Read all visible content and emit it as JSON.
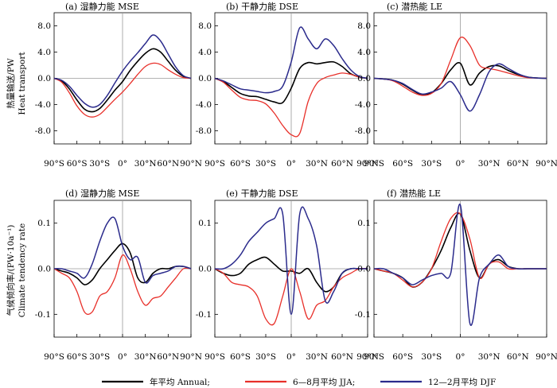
{
  "colors": {
    "annual": "#000000",
    "jja": "#e8302a",
    "djf": "#2b2b8c"
  },
  "legend": [
    {
      "key": "annual",
      "label": "年平均 Annual;"
    },
    {
      "key": "jja",
      "label": "6—8月平均 JJA;"
    },
    {
      "key": "djf",
      "label": "12—2月平均 DJF"
    }
  ],
  "y_labels": {
    "top_cn": "热量输送/PW",
    "top_en": "Heat transport",
    "bottom_cn": "气候倾向率/(PW·10a⁻¹)",
    "bottom_en": "Climate tendency rate"
  },
  "chart_data": [
    {
      "type": "line",
      "title": "(a) 湿静力能 MSE",
      "x": [
        -90,
        -80,
        -70,
        -60,
        -50,
        -40,
        -30,
        -20,
        -10,
        0,
        10,
        20,
        30,
        40,
        50,
        60,
        70,
        80,
        90
      ],
      "xlim": [
        -90,
        90
      ],
      "ylim": [
        -10,
        10
      ],
      "xticks": [
        -90,
        -60,
        -30,
        0,
        30,
        60,
        90
      ],
      "xticklabels": [
        "90°S",
        "60°S",
        "30°S",
        "0°",
        "30°N",
        "60°N",
        "90°N"
      ],
      "yticks": [
        -8,
        -4,
        0,
        4,
        8
      ],
      "yticklabels": [
        "-8.0",
        "-4.0",
        "0.0",
        "4.0",
        "8.0"
      ],
      "series": [
        {
          "name": "Annual",
          "values": [
            0,
            -0.4,
            -1.6,
            -3.3,
            -4.7,
            -5.1,
            -4.6,
            -3.3,
            -1.8,
            -0.5,
            1.2,
            2.6,
            3.8,
            4.5,
            4.0,
            2.6,
            1.2,
            0.3,
            0
          ]
        },
        {
          "name": "JJA",
          "values": [
            0,
            -0.6,
            -2.2,
            -4.2,
            -5.5,
            -5.9,
            -5.5,
            -4.4,
            -3.2,
            -2.1,
            -0.8,
            0.6,
            1.8,
            2.3,
            2.1,
            1.3,
            0.6,
            0.1,
            0
          ]
        },
        {
          "name": "DJF",
          "values": [
            0,
            -0.3,
            -1.2,
            -2.6,
            -3.8,
            -4.4,
            -4.0,
            -2.6,
            -0.7,
            1.1,
            2.6,
            3.9,
            5.3,
            6.6,
            5.7,
            3.7,
            1.7,
            0.4,
            0
          ]
        }
      ]
    },
    {
      "type": "line",
      "title": "(b) 干静力能 DSE",
      "x": [
        -90,
        -80,
        -70,
        -60,
        -50,
        -40,
        -30,
        -20,
        -10,
        0,
        10,
        20,
        30,
        40,
        50,
        60,
        70,
        80,
        90
      ],
      "xlim": [
        -90,
        90
      ],
      "ylim": [
        -10,
        10
      ],
      "xticks": [
        -90,
        -60,
        -30,
        0,
        30,
        60,
        90
      ],
      "xticklabels": [
        "90°S",
        "60°S",
        "30°S",
        "0°",
        "30°N",
        "60°N",
        "90°N"
      ],
      "yticks": [
        -8,
        -4,
        0,
        4,
        8
      ],
      "yticklabels": [
        "-8.0",
        "-4.0",
        "0.0",
        "4.0",
        "8.0"
      ],
      "series": [
        {
          "name": "Annual",
          "values": [
            0,
            -0.5,
            -1.4,
            -2.3,
            -2.7,
            -2.8,
            -3.2,
            -3.6,
            -3.7,
            -1.5,
            1.5,
            2.4,
            2.2,
            2.4,
            2.5,
            1.8,
            0.7,
            0.2,
            0
          ]
        },
        {
          "name": "JJA",
          "values": [
            0,
            -0.6,
            -1.8,
            -2.9,
            -3.3,
            -3.4,
            -3.9,
            -5.3,
            -7.2,
            -8.6,
            -8.4,
            -3.5,
            -0.8,
            0.1,
            0.5,
            0.8,
            0.6,
            0.2,
            0
          ]
        },
        {
          "name": "DJF",
          "values": [
            0,
            -0.4,
            -1.0,
            -1.6,
            -1.8,
            -2.0,
            -2.2,
            -2.0,
            -1.2,
            2.5,
            7.7,
            6.0,
            4.5,
            6.0,
            5.0,
            3.0,
            1.3,
            0.3,
            0
          ]
        }
      ]
    },
    {
      "type": "line",
      "title": "(c) 潜热能 LE",
      "x": [
        -90,
        -80,
        -70,
        -60,
        -50,
        -40,
        -30,
        -20,
        -10,
        0,
        10,
        20,
        30,
        40,
        50,
        60,
        70,
        80,
        90
      ],
      "xlim": [
        -90,
        90
      ],
      "ylim": [
        -10,
        10
      ],
      "xticks": [
        -90,
        -60,
        -30,
        0,
        30,
        60,
        90
      ],
      "xticklabels": [
        "90°S",
        "60°S",
        "30°S",
        "0°",
        "30°N",
        "60°N",
        "90°N"
      ],
      "yticks": [
        -8,
        -4,
        0,
        4,
        8
      ],
      "yticklabels": [
        "-8.0",
        "-4.0",
        "0.0",
        "4.0",
        "8.0"
      ],
      "series": [
        {
          "name": "Annual",
          "values": [
            0,
            -0.1,
            -0.3,
            -0.9,
            -1.8,
            -2.5,
            -2.2,
            -0.8,
            1.3,
            2.3,
            -1.0,
            0.8,
            1.8,
            1.9,
            1.2,
            0.6,
            0.2,
            0.05,
            0
          ]
        },
        {
          "name": "JJA",
          "values": [
            0,
            -0.1,
            -0.4,
            -1.2,
            -2.1,
            -2.6,
            -2.3,
            -0.8,
            2.8,
            6.2,
            5.0,
            2.0,
            1.5,
            1.2,
            0.8,
            0.4,
            0.1,
            0.05,
            0
          ]
        },
        {
          "name": "DJF",
          "values": [
            0,
            -0.1,
            -0.3,
            -0.8,
            -1.7,
            -2.4,
            -2.1,
            -1.5,
            -0.5,
            -2.5,
            -5.0,
            -2.5,
            1.0,
            2.2,
            1.5,
            0.7,
            0.2,
            0.05,
            0
          ]
        }
      ]
    },
    {
      "type": "line",
      "title": "(d) 湿静力能 MSE",
      "x": [
        -90,
        -80,
        -70,
        -60,
        -50,
        -40,
        -30,
        -20,
        -10,
        0,
        10,
        20,
        30,
        40,
        50,
        60,
        70,
        80,
        90
      ],
      "xlim": [
        -90,
        90
      ],
      "ylim": [
        -0.15,
        0.15
      ],
      "xticks": [
        -90,
        -60,
        -30,
        0,
        30,
        60,
        90
      ],
      "xticklabels": [
        "90°S",
        "60°S",
        "30°S",
        "0°",
        "30°N",
        "60°N",
        "90°N"
      ],
      "yticks": [
        -0.1,
        0,
        0.1
      ],
      "yticklabels": [
        "-0.1",
        "0.0",
        "0.1"
      ],
      "series": [
        {
          "name": "Annual",
          "values": [
            0,
            -0.005,
            -0.01,
            -0.02,
            -0.035,
            -0.025,
            0.0,
            0.02,
            0.04,
            0.055,
            0.035,
            -0.02,
            -0.03,
            -0.01,
            0.0,
            0.0,
            0.005,
            0.005,
            0
          ]
        },
        {
          "name": "JJA",
          "values": [
            0,
            -0.01,
            -0.02,
            -0.05,
            -0.095,
            -0.095,
            -0.06,
            -0.05,
            -0.02,
            0.03,
            0.0,
            -0.05,
            -0.08,
            -0.065,
            -0.06,
            -0.04,
            -0.02,
            0.0,
            0
          ]
        },
        {
          "name": "DJF",
          "values": [
            0,
            0.0,
            -0.005,
            -0.01,
            -0.02,
            0.01,
            0.06,
            0.1,
            0.11,
            0.05,
            0.02,
            0.025,
            -0.03,
            -0.015,
            -0.01,
            -0.005,
            0.005,
            0.005,
            0
          ]
        }
      ]
    },
    {
      "type": "line",
      "title": "(e) 干静力能 DSE",
      "x": [
        -90,
        -80,
        -70,
        -60,
        -50,
        -40,
        -30,
        -20,
        -10,
        0,
        10,
        20,
        30,
        40,
        50,
        60,
        70,
        80,
        90
      ],
      "xlim": [
        -90,
        90
      ],
      "ylim": [
        -0.15,
        0.15
      ],
      "xticks": [
        -90,
        -60,
        -30,
        0,
        30,
        60,
        90
      ],
      "xticklabels": [
        "90°S",
        "60°S",
        "30°S",
        "0°",
        "30°N",
        "60°N",
        "90°N"
      ],
      "yticks": [
        -0.1,
        0,
        0.1
      ],
      "yticklabels": [
        "-0.1",
        "0.0",
        "0.1"
      ],
      "series": [
        {
          "name": "Annual",
          "values": [
            0,
            -0.01,
            -0.015,
            -0.01,
            0.01,
            0.02,
            0.025,
            0.01,
            -0.005,
            -0.005,
            -0.01,
            0.0,
            -0.03,
            -0.05,
            -0.04,
            -0.01,
            0.0,
            0.0,
            0
          ]
        },
        {
          "name": "JJA",
          "values": [
            0,
            -0.01,
            -0.03,
            -0.035,
            -0.04,
            -0.06,
            -0.11,
            -0.12,
            -0.06,
            0.0,
            -0.05,
            -0.11,
            -0.08,
            -0.07,
            -0.04,
            -0.02,
            -0.01,
            0.0,
            0
          ]
        },
        {
          "name": "DJF",
          "values": [
            0,
            0.0,
            0.01,
            0.03,
            0.06,
            0.08,
            0.1,
            0.11,
            0.12,
            -0.1,
            0.12,
            0.11,
            0.05,
            -0.07,
            -0.05,
            -0.01,
            0.0,
            0.0,
            0
          ]
        }
      ]
    },
    {
      "type": "line",
      "title": "(f) 潜热能 LE",
      "x": [
        -90,
        -80,
        -70,
        -60,
        -50,
        -40,
        -30,
        -20,
        -10,
        0,
        10,
        20,
        30,
        40,
        50,
        60,
        70,
        80,
        90
      ],
      "xlim": [
        -90,
        90
      ],
      "ylim": [
        -0.15,
        0.15
      ],
      "xticks": [
        -90,
        -60,
        -30,
        0,
        30,
        60,
        90
      ],
      "xticklabels": [
        "90°S",
        "60°S",
        "30°S",
        "0°",
        "30°N",
        "60°N",
        "90°N"
      ],
      "yticks": [
        -0.1,
        0,
        0.1
      ],
      "yticklabels": [
        "-0.1",
        "0.0",
        "0.1"
      ],
      "series": [
        {
          "name": "Annual",
          "values": [
            0,
            -0.005,
            -0.01,
            -0.02,
            -0.04,
            -0.03,
            0.0,
            0.04,
            0.09,
            0.12,
            0.04,
            -0.02,
            0.01,
            0.02,
            0.005,
            0.0,
            0.0,
            0.0,
            0
          ]
        },
        {
          "name": "JJA",
          "values": [
            0,
            -0.005,
            -0.01,
            -0.025,
            -0.04,
            -0.03,
            0.0,
            0.06,
            0.11,
            0.12,
            0.065,
            -0.02,
            0.01,
            0.015,
            0.0,
            0.0,
            0.0,
            0.0,
            0
          ]
        },
        {
          "name": "DJF",
          "values": [
            0,
            0.0,
            -0.01,
            -0.02,
            -0.035,
            -0.025,
            -0.015,
            -0.01,
            -0.01,
            0.14,
            -0.12,
            -0.02,
            0.01,
            0.03,
            0.005,
            0.0,
            0.0,
            0.0,
            0
          ]
        }
      ]
    }
  ]
}
